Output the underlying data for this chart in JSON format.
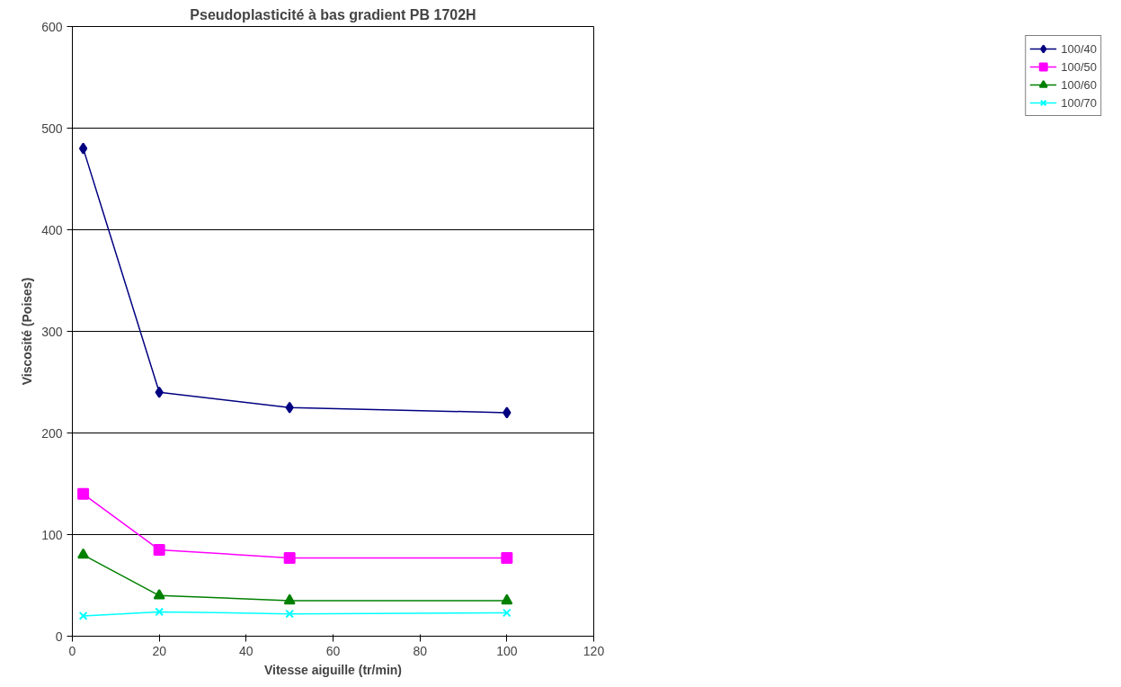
{
  "chart_data": {
    "type": "line",
    "title": "Pseudoplasticité à bas gradient PB 1702H",
    "xlabel": "Vitesse aiguille (tr/min)",
    "ylabel": "Viscosité (Poises)",
    "x": [
      2.5,
      20,
      50,
      100
    ],
    "series": [
      {
        "name": "100/40",
        "color": "#000080",
        "marker": "diamond",
        "values": [
          480,
          240,
          225,
          220
        ]
      },
      {
        "name": "100/50",
        "color": "#ff00ff",
        "marker": "square",
        "values": [
          140,
          85,
          77,
          77
        ]
      },
      {
        "name": "100/60",
        "color": "#008000",
        "marker": "triangle",
        "values": [
          80,
          40,
          35,
          35
        ]
      },
      {
        "name": "100/70",
        "color": "#00ffff",
        "marker": "cross",
        "values": [
          20,
          24,
          22,
          23
        ]
      }
    ],
    "xlim": [
      0,
      120
    ],
    "xticks": [
      0,
      20,
      40,
      60,
      80,
      100,
      120
    ],
    "ylim": [
      0,
      600
    ],
    "yticks": [
      0,
      100,
      200,
      300,
      400,
      500,
      600
    ],
    "grid": "y",
    "legend": "right"
  }
}
